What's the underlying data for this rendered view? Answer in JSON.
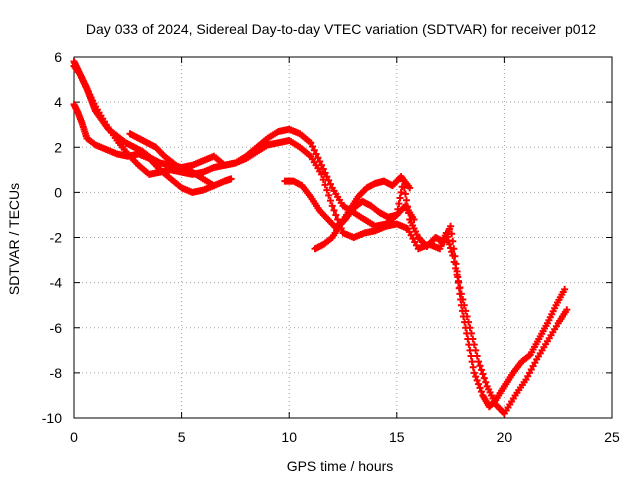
{
  "chart_data": {
    "type": "scatter",
    "title": "Day 033 of 2024, Sidereal Day-to-day VTEC variation (SDTVAR) for receiver p012",
    "xlabel": "GPS time / hours",
    "ylabel": "SDTVAR / TECUs",
    "xlim": [
      0,
      25
    ],
    "ylim": [
      -10,
      6
    ],
    "xticks": [
      0,
      5,
      10,
      15,
      20,
      25
    ],
    "yticks": [
      -10,
      -8,
      -6,
      -4,
      -2,
      0,
      2,
      4,
      6
    ],
    "grid": true,
    "legend": "none",
    "marker": "+",
    "color": "#ff0000",
    "series": [
      {
        "x": [
          0.0,
          0.2,
          0.4,
          0.6,
          0.8,
          1.0,
          1.3,
          1.6,
          2.0,
          2.4,
          2.8,
          3.2,
          3.6,
          4.0,
          4.5,
          5.0,
          5.5,
          6.0,
          6.5,
          7.0,
          7.5,
          8.0,
          8.5,
          9.0,
          9.5,
          10.0,
          10.5,
          11.0,
          11.5,
          12.0,
          12.5,
          13.0,
          13.5,
          14.0,
          14.5,
          15.0,
          15.3,
          15.6,
          16.0,
          16.4,
          16.8,
          17.2,
          17.5,
          17.8,
          18.0,
          18.3,
          18.6,
          19.0,
          19.3,
          19.6,
          20.0,
          20.4,
          20.8,
          21.2,
          21.6,
          22.0,
          22.4,
          22.8
        ],
        "y": [
          5.8,
          5.4,
          5.0,
          4.6,
          4.1,
          3.6,
          3.2,
          2.8,
          2.5,
          2.2,
          2.0,
          1.8,
          1.5,
          1.3,
          1.2,
          1.1,
          1.2,
          1.4,
          1.6,
          1.2,
          1.3,
          1.6,
          2.0,
          2.4,
          2.7,
          2.8,
          2.6,
          2.2,
          1.2,
          0.2,
          -0.6,
          -0.9,
          -1.2,
          -1.5,
          -1.4,
          -1.0,
          0.5,
          -1.2,
          -2.0,
          -2.4,
          -2.0,
          -2.2,
          -1.5,
          -3.5,
          -5.0,
          -6.5,
          -8.0,
          -9.0,
          -9.5,
          -9.2,
          -8.6,
          -8.0,
          -7.5,
          -7.2,
          -6.5,
          -5.8,
          -5.0,
          -4.3
        ]
      },
      {
        "x": [
          0.0,
          0.3,
          0.6,
          1.0,
          1.5,
          2.0,
          2.5,
          3.0,
          3.5,
          4.0,
          4.5,
          5.0,
          5.5,
          6.0,
          6.5,
          7.0,
          7.5,
          8.0,
          8.5,
          9.0,
          9.5,
          10.0,
          10.5,
          11.0,
          11.5,
          12.0,
          12.5,
          13.0,
          13.5,
          14.0,
          14.5,
          15.0,
          15.5,
          16.0,
          16.5,
          17.0,
          17.3,
          17.6,
          18.0,
          18.4,
          18.8,
          19.2,
          19.6,
          20.0,
          20.5,
          21.0,
          21.5,
          22.0,
          22.5,
          22.9
        ],
        "y": [
          5.6,
          5.2,
          4.6,
          3.8,
          3.0,
          2.3,
          1.7,
          1.2,
          0.8,
          0.9,
          1.0,
          0.9,
          0.8,
          0.9,
          1.1,
          1.2,
          1.3,
          1.5,
          1.8,
          2.1,
          2.2,
          2.3,
          2.0,
          1.6,
          0.8,
          -0.6,
          -1.8,
          -2.0,
          -1.8,
          -1.7,
          -1.5,
          -1.4,
          -1.6,
          -2.5,
          -2.3,
          -2.5,
          -1.8,
          -2.8,
          -4.5,
          -6.0,
          -7.5,
          -8.6,
          -9.4,
          -9.8,
          -9.0,
          -8.3,
          -7.4,
          -6.6,
          -5.8,
          -5.2
        ]
      },
      {
        "x": [
          0.0,
          0.2,
          0.4,
          0.6,
          1.0,
          1.5,
          2.0,
          2.5,
          3.0,
          3.5,
          4.0,
          4.5,
          5.0,
          5.5,
          6.0,
          6.5,
          7.0,
          7.3
        ],
        "y": [
          3.9,
          3.5,
          3.0,
          2.4,
          2.1,
          1.9,
          1.7,
          1.6,
          1.7,
          1.5,
          1.0,
          0.6,
          0.2,
          0.0,
          0.1,
          0.3,
          0.5,
          0.6
        ]
      },
      {
        "x": [
          2.6,
          3.0,
          3.4,
          3.8,
          4.2,
          4.6,
          5.0,
          5.5,
          6.0,
          6.5
        ],
        "y": [
          2.6,
          2.4,
          2.2,
          2.0,
          1.6,
          1.3,
          1.0,
          0.9,
          0.6,
          0.3
        ]
      },
      {
        "x": [
          9.8,
          10.2,
          10.6,
          11.0,
          11.4,
          11.8,
          12.2,
          12.6,
          13.0,
          13.4,
          13.8,
          14.2,
          14.6,
          15.0,
          15.4,
          15.8
        ],
        "y": [
          0.5,
          0.5,
          0.3,
          -0.2,
          -0.8,
          -1.2,
          -1.6,
          -1.2,
          -0.7,
          -0.4,
          -0.6,
          -0.9,
          -1.1,
          -1.0,
          -0.6,
          -1.2
        ]
      },
      {
        "x": [
          11.2,
          11.6,
          12.0,
          12.4,
          12.8,
          13.2,
          13.6,
          14.0,
          14.4,
          14.8,
          15.2,
          15.6
        ],
        "y": [
          -2.5,
          -2.3,
          -2.0,
          -1.4,
          -0.8,
          -0.2,
          0.2,
          0.4,
          0.5,
          0.3,
          0.7,
          0.2
        ]
      }
    ]
  }
}
